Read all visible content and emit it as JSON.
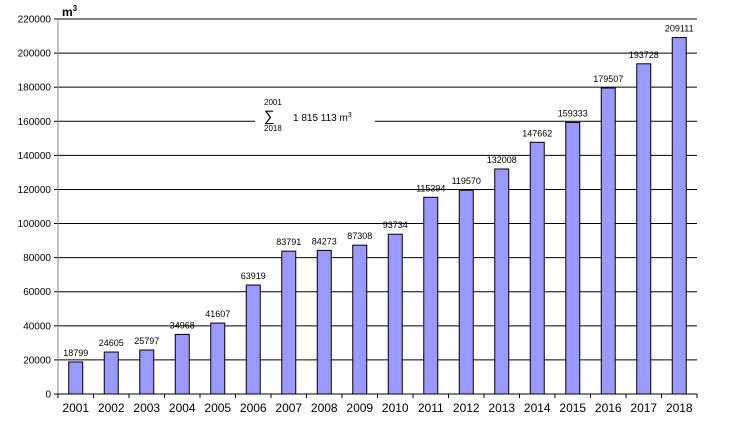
{
  "chart_data": {
    "type": "bar",
    "title": "",
    "xlabel": "",
    "ylabel": "",
    "unit": "m",
    "unit_superscript": "3",
    "ylim": [
      0,
      220000
    ],
    "yticks": [
      "0",
      "20000",
      "40000",
      "60000",
      "80000",
      "100000",
      "120000",
      "140000",
      "160000",
      "180000",
      "200000",
      "220000"
    ],
    "grid": true,
    "bar_color": "#9999ff",
    "categories": [
      "2001",
      "2002",
      "2003",
      "2004",
      "2005",
      "2006",
      "2007",
      "2008",
      "2009",
      "2010",
      "2011",
      "2012",
      "2013",
      "2014",
      "2015",
      "2016",
      "2017",
      "2018"
    ],
    "values": [
      18799,
      24605,
      25797,
      34968,
      41607,
      63919,
      83791,
      84273,
      87308,
      93734,
      115394,
      119570,
      132008,
      147662,
      159333,
      179507,
      193728,
      209111
    ],
    "annotation": {
      "sum_symbol": "∑",
      "from": "2001",
      "to": "2018",
      "value": "1 815 113 m",
      "value_superscript": "3"
    }
  }
}
